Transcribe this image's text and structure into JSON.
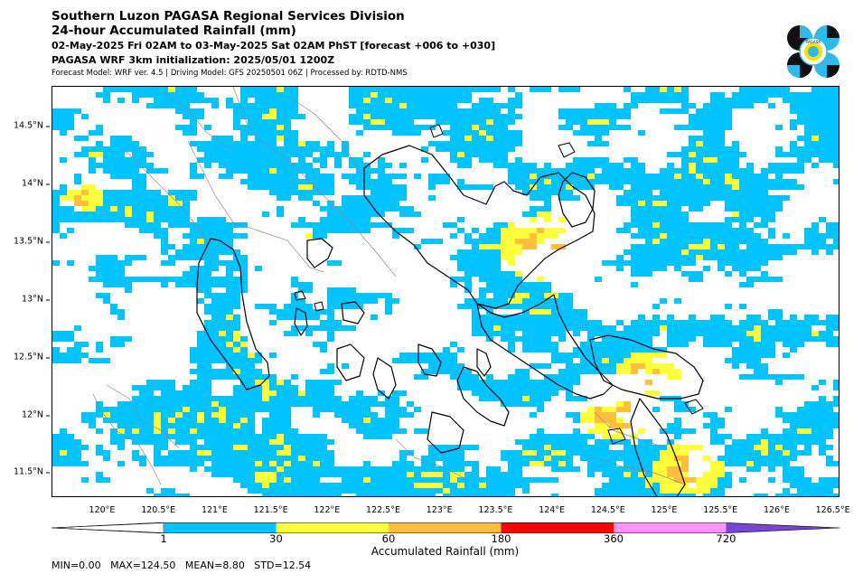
{
  "header": {
    "title": "Southern Luzon PAGASA Regional Services Division",
    "subtitle": "24-hour Accumulated Rainfall (mm)",
    "period": "02-May-2025 Fri 02AM to 03-May-2025 Sat 02AM PhST [forecast +006 to +030]",
    "init": "PAGASA WRF 3km initialization: 2025/05/01 1200Z",
    "model_info": "Forecast Model: WRF ver. 4.5 | Driving Model: GFS 20250501 06Z | Processed by: RDTD-NMS"
  },
  "logo": {
    "icon": "pagasa-logo-icon",
    "text": "PAGASA"
  },
  "map": {
    "lon_range": [
      119.55,
      126.55
    ],
    "lat_range": [
      11.28,
      14.85
    ],
    "x_ticks": [
      "120°E",
      "120.5°E",
      "121°E",
      "121.5°E",
      "122°E",
      "122.5°E",
      "123°E",
      "123.5°E",
      "124°E",
      "124.5°E",
      "125°E",
      "125.5°E",
      "126°E",
      "126.5°E"
    ],
    "y_ticks": [
      "14.5°N",
      "14°N",
      "13.5°N",
      "13°N",
      "12.5°N",
      "12°N",
      "11.5°N"
    ],
    "colors": {
      "cyan": "#00c3ff",
      "yellow": "#ffff3c",
      "orange": "#ffbe3c",
      "coast": "#000000",
      "border": "#808080"
    }
  },
  "colorbar": {
    "label": "Accumulated Rainfall (mm)",
    "ticks": [
      "1",
      "30",
      "60",
      "180",
      "360",
      "720"
    ],
    "colors": [
      "#00c3ff",
      "#ffff3c",
      "#ffbe3c",
      "#ff0000",
      "#ff96ff",
      "#7846d2"
    ]
  },
  "stats": "MIN=0.00   MAX=124.50   MEAN=8.80   STD=12.54"
}
